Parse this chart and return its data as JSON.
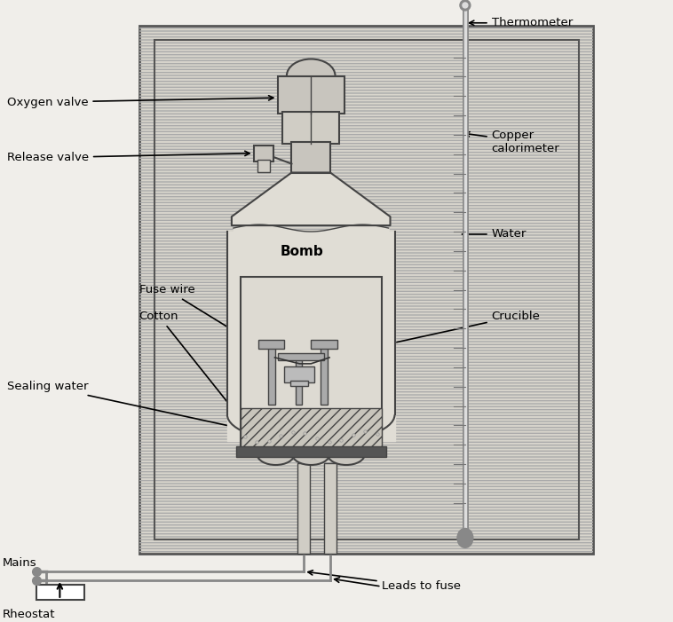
{
  "figsize": [
    7.58,
    7.01
  ],
  "dpi": 100,
  "bg_color": "#f0eeea",
  "labels": {
    "thermometer": "Thermometer",
    "copper_calorimeter": "Copper\ncalorimeter",
    "oxygen_valve": "Oxygen valve",
    "release_valve": "Release valve",
    "bomb": "Bomb",
    "water": "Water",
    "fuse_wire": "Fuse wire",
    "cotton": "Cotton",
    "crucible": "Crucible",
    "sealing_water": "Sealing water",
    "mains": "Mains",
    "rheostat": "Rheostat",
    "leads_to_fuse": "Leads to fuse"
  },
  "colors": {
    "bg": "#f0eeea",
    "outer_box_fill": "#d8d5cc",
    "outer_box_edge": "#555555",
    "inner_box_fill": "#e8e5de",
    "hatch_ec": "#aaaaaa",
    "bomb_fill": "#e0ddd5",
    "bomb_edge": "#555555",
    "neck_fill": "#c8c5be",
    "dark": "#444444",
    "gray": "#aaaaaa",
    "lgray": "#d0cdc5",
    "white": "#ffffff",
    "thermo": "#999999"
  }
}
